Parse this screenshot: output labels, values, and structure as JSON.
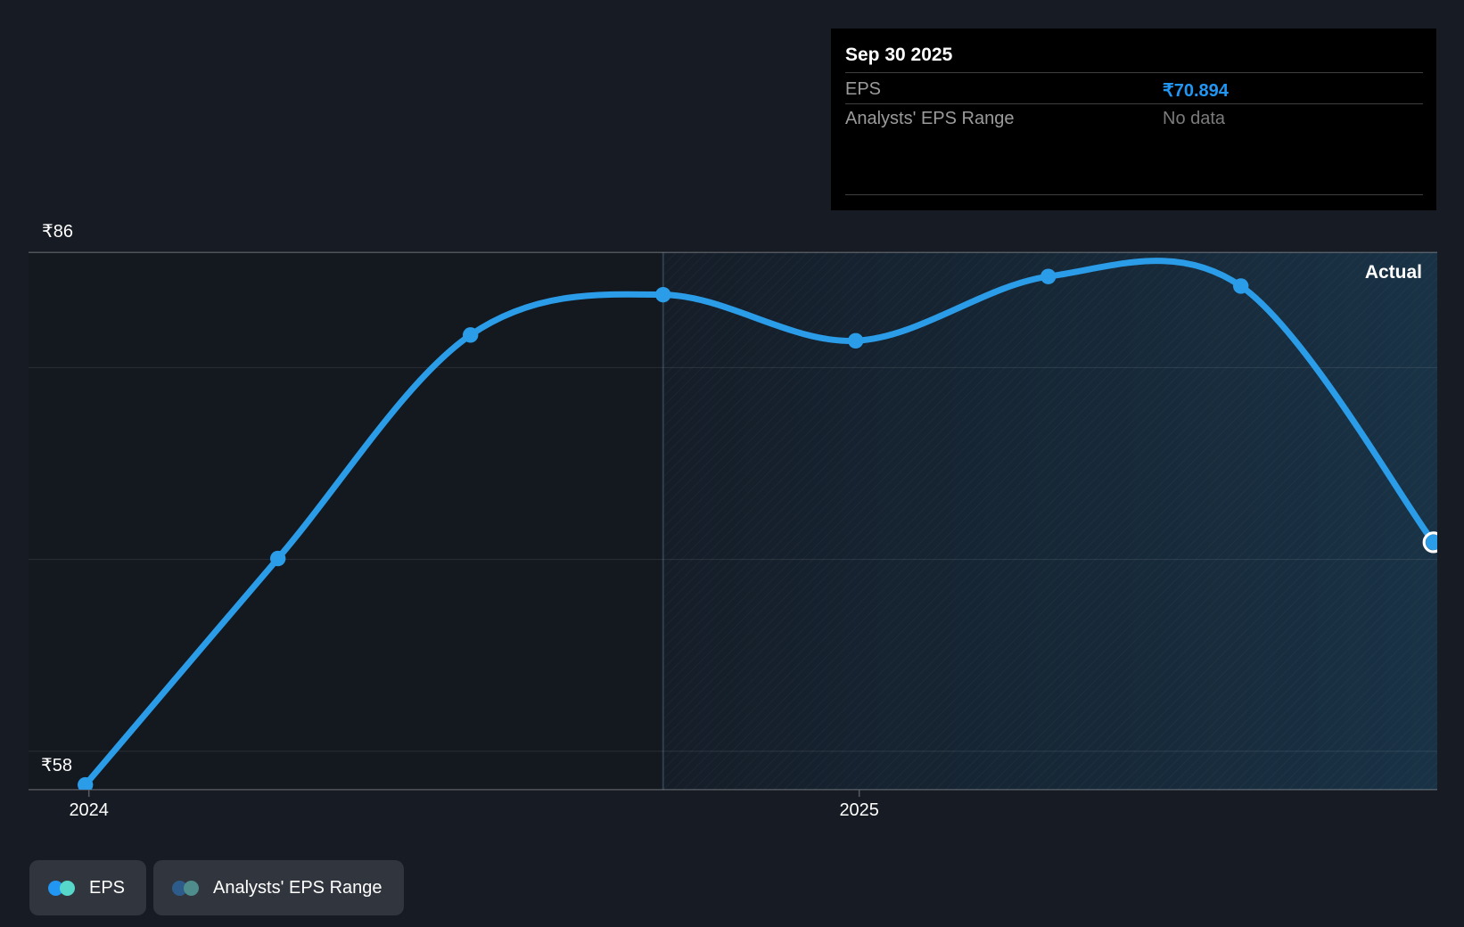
{
  "page": {
    "background": "#171b23"
  },
  "tooltip": {
    "title": "Sep 30 2025",
    "rows": [
      {
        "label": "EPS",
        "value": "₹70.894",
        "value_color": "#2196f3"
      },
      {
        "label": "Analysts' EPS Range",
        "value": "No data",
        "value_color": "#7b7b7b"
      }
    ]
  },
  "axes": {
    "y_max_label": "₹86",
    "y_min_label": "₹58"
  },
  "plot": {
    "actual_label": "Actual",
    "line_color": "#2b9ce7",
    "divider_color": "rgba(150,190,230,0.22)",
    "hover_ring_color": "#ffffff"
  },
  "legend": [
    {
      "label": "EPS",
      "dot_colors": [
        "#2196f3",
        "#57d7ca"
      ]
    },
    {
      "label": "Analysts' EPS Range",
      "dot_colors": [
        "#2d5c8a",
        "#4e8d8b"
      ]
    }
  ],
  "chart_data": {
    "type": "line",
    "title": "EPS history with analyst range (hover: Sep 30 2025)",
    "series": [
      {
        "name": "EPS",
        "color": "#2b9ce7",
        "unit": "₹",
        "x": [
          "Dec 31 2023",
          "Mar 31 2024",
          "Jun 30 2024",
          "Sep 30 2024",
          "Dec 31 2024",
          "Mar 31 2025",
          "Jun 30 2025",
          "Sep 30 2025"
        ],
        "values": [
          58.25,
          70.05,
          81.7,
          83.8,
          81.4,
          84.75,
          84.25,
          70.894
        ]
      }
    ],
    "ylim": [
      58,
      86
    ],
    "y_axis_labels": [
      "₹86",
      "₹58"
    ],
    "gridline_values": [
      86,
      80,
      70,
      60,
      58
    ],
    "x_tick_labels": [
      {
        "label": "2024",
        "index": 0
      },
      {
        "label": "2025",
        "index": 4
      }
    ],
    "divider_index": 3,
    "hover_index": 7,
    "right_region_label": "Actual",
    "grid": true,
    "legend_position": "bottom-left",
    "legend_entries": [
      "EPS",
      "Analysts' EPS Range"
    ]
  }
}
